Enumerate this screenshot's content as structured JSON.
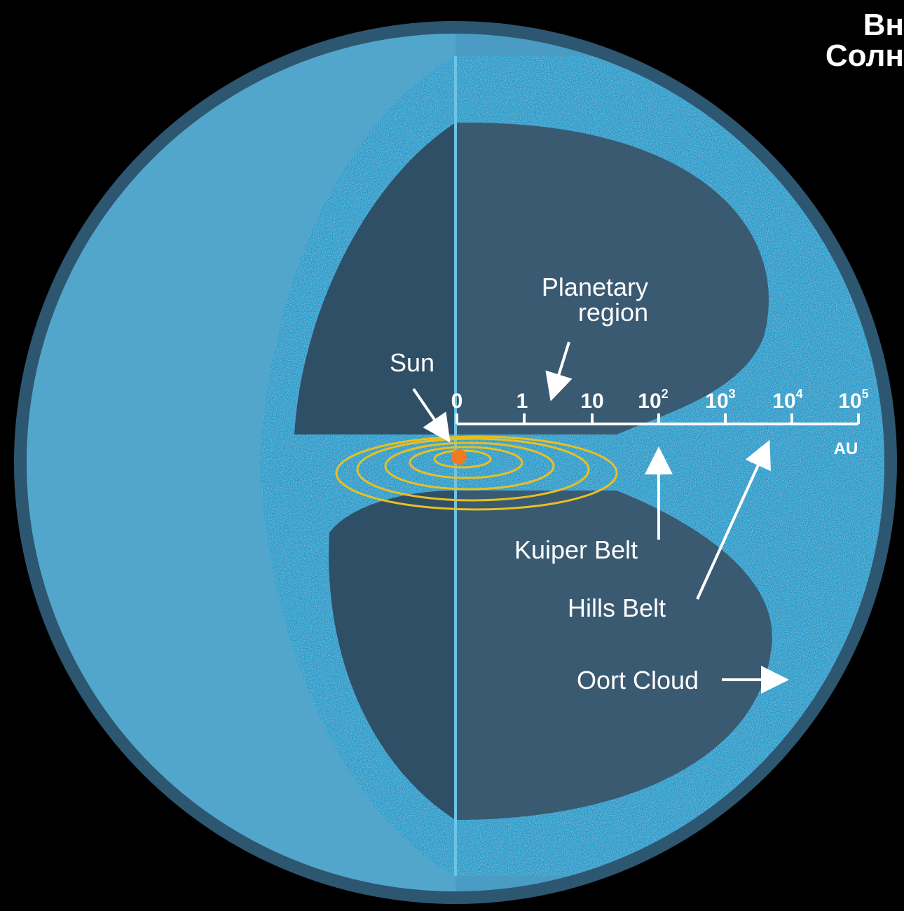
{
  "title": {
    "lines": [
      "Вн",
      "Солн"
    ]
  },
  "labels": {
    "planetary_region": [
      "Planetary",
      "region"
    ],
    "sun": "Sun",
    "kuiper_belt": "Kuiper Belt",
    "hills_belt": "Hills Belt",
    "oort_cloud": "Oort Cloud"
  },
  "scale": {
    "unit": "AU",
    "ticks": [
      {
        "base": "0"
      },
      {
        "base": "1"
      },
      {
        "base": "10"
      },
      {
        "base": "10",
        "exp": "2"
      },
      {
        "base": "10",
        "exp": "3"
      },
      {
        "base": "10",
        "exp": "4"
      },
      {
        "base": "10",
        "exp": "5"
      }
    ]
  }
}
